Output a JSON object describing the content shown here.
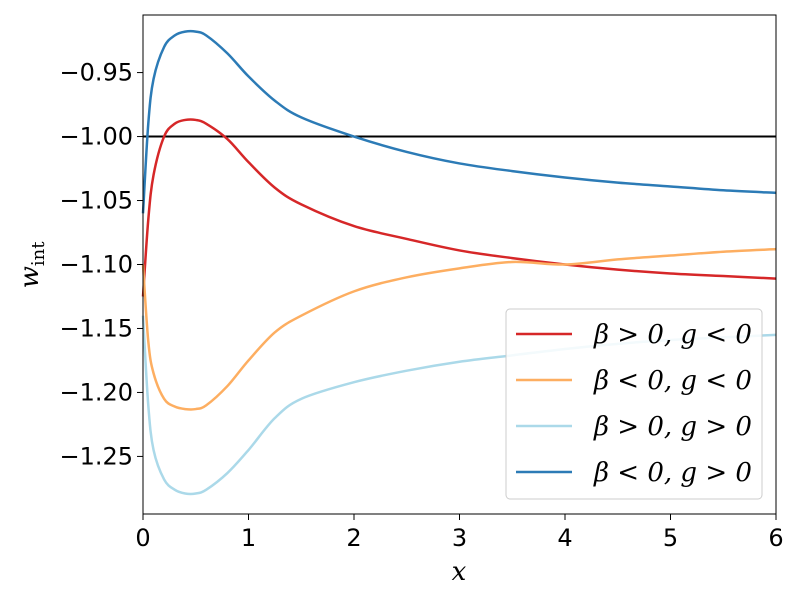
{
  "chart_data": {
    "type": "line",
    "xlabel": "x",
    "ylabel": "w",
    "ylabel_sub": "int",
    "xlim": [
      0,
      6
    ],
    "ylim": [
      -1.295,
      -0.905
    ],
    "x_ticks": [
      0,
      1,
      2,
      3,
      4,
      5,
      6
    ],
    "x_tick_labels": [
      "0",
      "1",
      "2",
      "3",
      "4",
      "5",
      "6"
    ],
    "y_ticks": [
      -0.95,
      -1.0,
      -1.05,
      -1.1,
      -1.15,
      -1.2,
      -1.25
    ],
    "y_tick_labels": [
      "−0.95",
      "−1.00",
      "−1.05",
      "−1.10",
      "−1.15",
      "−1.20",
      "−1.25"
    ],
    "grid": false,
    "legend_position": "lower-right",
    "reference_line": {
      "y": -1.0,
      "color": "#000000"
    },
    "x": [
      0,
      0.05,
      0.1,
      0.2,
      0.3,
      0.4,
      0.5,
      0.6,
      0.8,
      1.0,
      1.25,
      1.5,
      2.0,
      2.5,
      3.0,
      3.5,
      4.0,
      4.5,
      5.0,
      5.5,
      6.0
    ],
    "series": [
      {
        "name": "β > 0, g < 0",
        "color": "#d62728",
        "values": [
          -1.125,
          -1.065,
          -1.03,
          -1.0,
          -0.99,
          -0.987,
          -0.987,
          -0.99,
          -1.002,
          -1.02,
          -1.04,
          -1.053,
          -1.07,
          -1.08,
          -1.089,
          -1.095,
          -1.1,
          -1.104,
          -1.107,
          -1.109,
          -1.111
        ]
      },
      {
        "name": "β < 0, g < 0",
        "color": "#fdae61",
        "values": [
          -1.1,
          -1.16,
          -1.185,
          -1.205,
          -1.211,
          -1.213,
          -1.213,
          -1.21,
          -1.195,
          -1.175,
          -1.153,
          -1.14,
          -1.121,
          -1.11,
          -1.103,
          -1.098,
          -1.1,
          -1.096,
          -1.093,
          -1.09,
          -1.088
        ]
      },
      {
        "name": "β > 0, g > 0",
        "color": "#abd9e9",
        "values": [
          -1.14,
          -1.21,
          -1.245,
          -1.268,
          -1.276,
          -1.279,
          -1.279,
          -1.276,
          -1.263,
          -1.245,
          -1.22,
          -1.205,
          -1.192,
          -1.183,
          -1.176,
          -1.171,
          -1.166,
          -1.162,
          -1.159,
          -1.157,
          -1.155
        ]
      },
      {
        "name": "β < 0, g > 0",
        "color": "#2c7bb6",
        "values": [
          -1.06,
          -0.99,
          -0.955,
          -0.93,
          -0.921,
          -0.918,
          -0.918,
          -0.921,
          -0.935,
          -0.953,
          -0.972,
          -0.985,
          -1.0,
          -1.012,
          -1.021,
          -1.027,
          -1.032,
          -1.036,
          -1.039,
          -1.042,
          -1.044
        ]
      }
    ]
  }
}
